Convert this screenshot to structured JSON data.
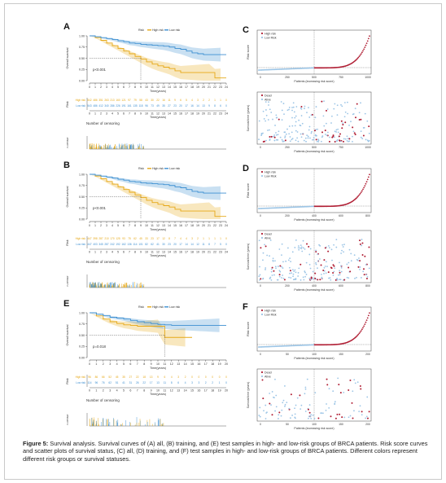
{
  "panels": {
    "A": {
      "letter": "A",
      "legend": [
        "Risk",
        "High risk",
        "Low risk"
      ],
      "km_ylabel": "Overall survival",
      "km_yticks": [
        "1.00",
        "0.75",
        "0.50",
        "0.25",
        "0.00"
      ],
      "km_xticks": [
        "0",
        "1",
        "2",
        "3",
        "4",
        "5",
        "6",
        "7",
        "8",
        "9",
        "10",
        "11",
        "12",
        "13",
        "14",
        "15",
        "16",
        "17",
        "18",
        "19",
        "20",
        "21",
        "22",
        "23",
        "24"
      ],
      "xlabel": "Time(years)",
      "pvalue": "p<0.001",
      "risk_title": "Risk",
      "risk_rows": [
        "High risk",
        "Low risk"
      ],
      "risk_high": [
        "542",
        "486",
        "351",
        "263",
        "213",
        "160",
        "121",
        "97",
        "79",
        "58",
        "43",
        "30",
        "22",
        "16",
        "11",
        "9",
        "6",
        "5",
        "4",
        "3",
        "2",
        "2",
        "1",
        "1",
        "0"
      ],
      "risk_low": [
        "543",
        "486",
        "412",
        "340",
        "286",
        "226",
        "191",
        "161",
        "135",
        "118",
        "96",
        "73",
        "49",
        "35",
        "27",
        "23",
        "20",
        "17",
        "16",
        "14",
        "13",
        "9",
        "8",
        "6",
        "0"
      ],
      "censor_title": "Number of censoring",
      "censor_ylabel": "n.censor"
    },
    "B": {
      "letter": "B",
      "legend": [
        "Risk",
        "High risk",
        "Low risk"
      ],
      "km_ylabel": "Overall survival",
      "km_yticks": [
        "1.00",
        "0.75",
        "0.50",
        "0.25",
        "0.00"
      ],
      "km_xticks": [
        "0",
        "1",
        "2",
        "3",
        "4",
        "5",
        "6",
        "7",
        "8",
        "9",
        "10",
        "11",
        "12",
        "13",
        "14",
        "15",
        "16",
        "17",
        "18",
        "19",
        "20",
        "21",
        "22",
        "23",
        "24"
      ],
      "xlabel": "Time(years)",
      "pvalue": "p<0.001",
      "risk_title": "Risk",
      "risk_rows": [
        "High risk",
        "Low risk"
      ],
      "risk_high": [
        "447",
        "398",
        "287",
        "210",
        "170",
        "125",
        "93",
        "75",
        "62",
        "45",
        "33",
        "23",
        "17",
        "12",
        "8",
        "7",
        "4",
        "4",
        "3",
        "2",
        "1",
        "1",
        "1",
        "1",
        "0"
      ],
      "risk_low": [
        "447",
        "403",
        "345",
        "287",
        "242",
        "192",
        "162",
        "136",
        "114",
        "101",
        "82",
        "62",
        "41",
        "30",
        "23",
        "20",
        "17",
        "14",
        "14",
        "12",
        "11",
        "8",
        "7",
        "5",
        "0"
      ],
      "censor_title": "Number of censoring",
      "censor_ylabel": "n.censor"
    },
    "C": {
      "letter": "C",
      "legend_top": [
        "High risk",
        "Low Risk"
      ],
      "ylabel_top": "Risk score",
      "xlabel": "Patients (increasing risk score)",
      "xticks": [
        "0",
        "250",
        "500",
        "750",
        "1000"
      ],
      "legend_bottom": [
        "Dead",
        "Alive"
      ],
      "ylabel_bottom": "Survival time (years)"
    },
    "D": {
      "letter": "D",
      "legend_top": [
        "High risk",
        "Low Risk"
      ],
      "ylabel_top": "Risk score",
      "xlabel": "Patients (increasing risk score)",
      "xticks": [
        "0",
        "200",
        "400",
        "600",
        "800"
      ],
      "legend_bottom": [
        "Dead",
        "Alive"
      ],
      "ylabel_bottom": "Survival time (years)"
    },
    "E": {
      "letter": "E",
      "legend": [
        "Risk",
        "High risk",
        "Low risk"
      ],
      "km_ylabel": "Overall survival",
      "km_yticks": [
        "1.00",
        "0.75",
        "0.50",
        "0.25",
        "0.00"
      ],
      "km_xticks": [
        "0",
        "1",
        "2",
        "3",
        "4",
        "5",
        "6",
        "7",
        "8",
        "9",
        "10",
        "11",
        "12",
        "13",
        "14",
        "15",
        "16",
        "17",
        "18",
        "19",
        "20"
      ],
      "xlabel": "Time(years)",
      "pvalue": "p=0.018",
      "risk_title": "Risk",
      "risk_rows": [
        "High risk",
        "Low risk"
      ],
      "risk_high": [
        "96",
        "86",
        "66",
        "52",
        "45",
        "35",
        "27",
        "22",
        "18",
        "13",
        "9",
        "6",
        "4",
        "3",
        "2",
        "0",
        "0",
        "0",
        "0",
        "0",
        "0"
      ],
      "risk_low": [
        "114",
        "96",
        "76",
        "62",
        "51",
        "41",
        "31",
        "26",
        "22",
        "17",
        "13",
        "11",
        "8",
        "6",
        "4",
        "3",
        "3",
        "2",
        "2",
        "1",
        "0"
      ],
      "censor_title": "Number of censoring",
      "censor_ylabel": "n.censor"
    },
    "F": {
      "letter": "F",
      "legend_top": [
        "High risk",
        "Low Risk"
      ],
      "ylabel_top": "Risk score",
      "xlabel": "Patients (increasing risk score)",
      "xticks": [
        "0",
        "50",
        "100",
        "150",
        "200"
      ],
      "legend_bottom": [
        "Dead",
        "Alive"
      ],
      "ylabel_bottom": "Survival time (years)"
    }
  },
  "caption": {
    "label": "Figure 5:",
    "text": " Survival analysis. Survival curves of (A) all, (B) training, and (E) test samples in high- and low-risk groups of BRCA patients. Risk score curves and scatter plots of survival status, (C) all, (D) training, and (F) test samples in high- and low-risk groups of BRCA patients. Different colors represent different risk groups or survival statuses."
  },
  "colors": {
    "high": "#e6a817",
    "low": "#3d8fd1",
    "dead": "#b01e34",
    "alive": "#9cc5e6",
    "grid": "#333333"
  }
}
